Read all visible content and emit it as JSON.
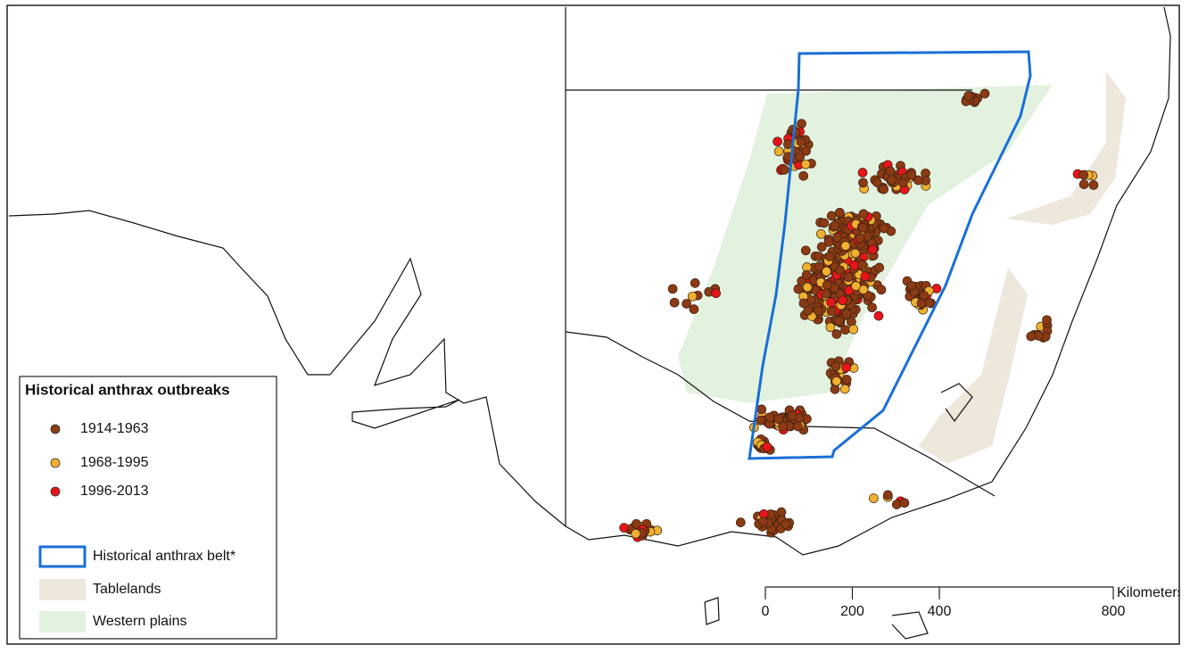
{
  "legend": {
    "title": "Historical anthrax outbreaks",
    "items": [
      {
        "label": "1914-1963",
        "color": "#8b3a14"
      },
      {
        "label": "1968-1995",
        "color": "#f0b030"
      },
      {
        "label": "1996-2013",
        "color": "#e8141a"
      }
    ],
    "areas": [
      {
        "label": "Historical anthrax belt*",
        "color": "#1a6fd6"
      },
      {
        "label": "Tablelands",
        "color": "#ede7dc"
      },
      {
        "label": "Western plains",
        "color": "#e2f2df"
      }
    ]
  },
  "scale_bar": {
    "unit": "Kilometers",
    "ticks": [
      0,
      200,
      400,
      800
    ]
  }
}
